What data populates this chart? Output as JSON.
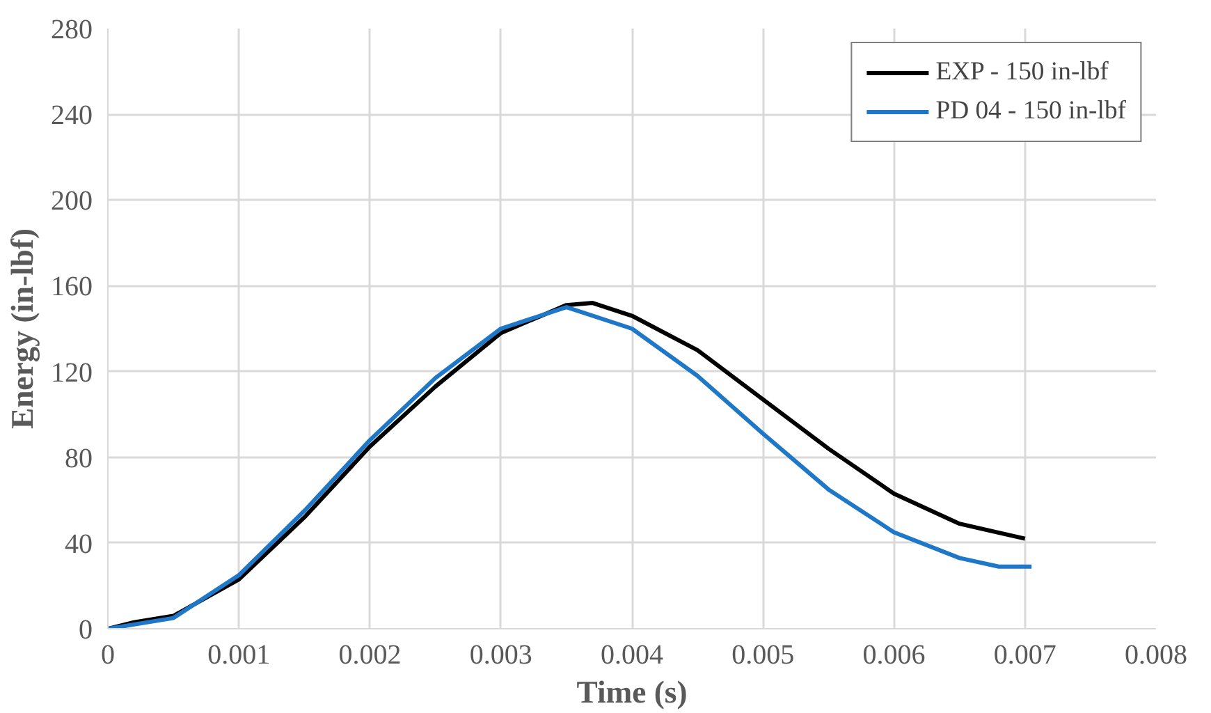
{
  "chart_data": {
    "type": "line",
    "xlabel": "Time (s)",
    "ylabel": "Energy (in-lbf)",
    "xlim": [
      0,
      0.008
    ],
    "xticks": [
      0,
      0.001,
      0.002,
      0.003,
      0.004,
      0.005,
      0.006,
      0.007,
      0.008
    ],
    "ylim": [
      0,
      280
    ],
    "yticks": [
      0,
      40,
      80,
      120,
      160,
      200,
      240,
      280
    ],
    "grid": true,
    "legend": "top right",
    "marker": "none",
    "line_style": "solid",
    "series": [
      {
        "name": "EXP - 150 in-lbf",
        "color": "#000000",
        "x": [
          0,
          0.0002,
          0.0005,
          0.001,
          0.0015,
          0.002,
          0.0025,
          0.003,
          0.0035,
          0.0037,
          0.004,
          0.0045,
          0.005,
          0.0055,
          0.006,
          0.0065,
          0.007
        ],
        "values": [
          0,
          3,
          6,
          23,
          52,
          85,
          113,
          138,
          151,
          152,
          146,
          130,
          107,
          84,
          63,
          49,
          42
        ]
      },
      {
        "name": "PD 04 - 150 in-lbf",
        "color": "#1f77c8",
        "x": [
          0,
          0.0002,
          0.0005,
          0.001,
          0.0015,
          0.002,
          0.0025,
          0.003,
          0.0035,
          0.004,
          0.0045,
          0.005,
          0.0055,
          0.006,
          0.0065,
          0.0068,
          0.00705
        ],
        "values": [
          0,
          2,
          5,
          25,
          55,
          88,
          117,
          140,
          150,
          140,
          118,
          91,
          65,
          45,
          33,
          29,
          29
        ]
      }
    ]
  }
}
